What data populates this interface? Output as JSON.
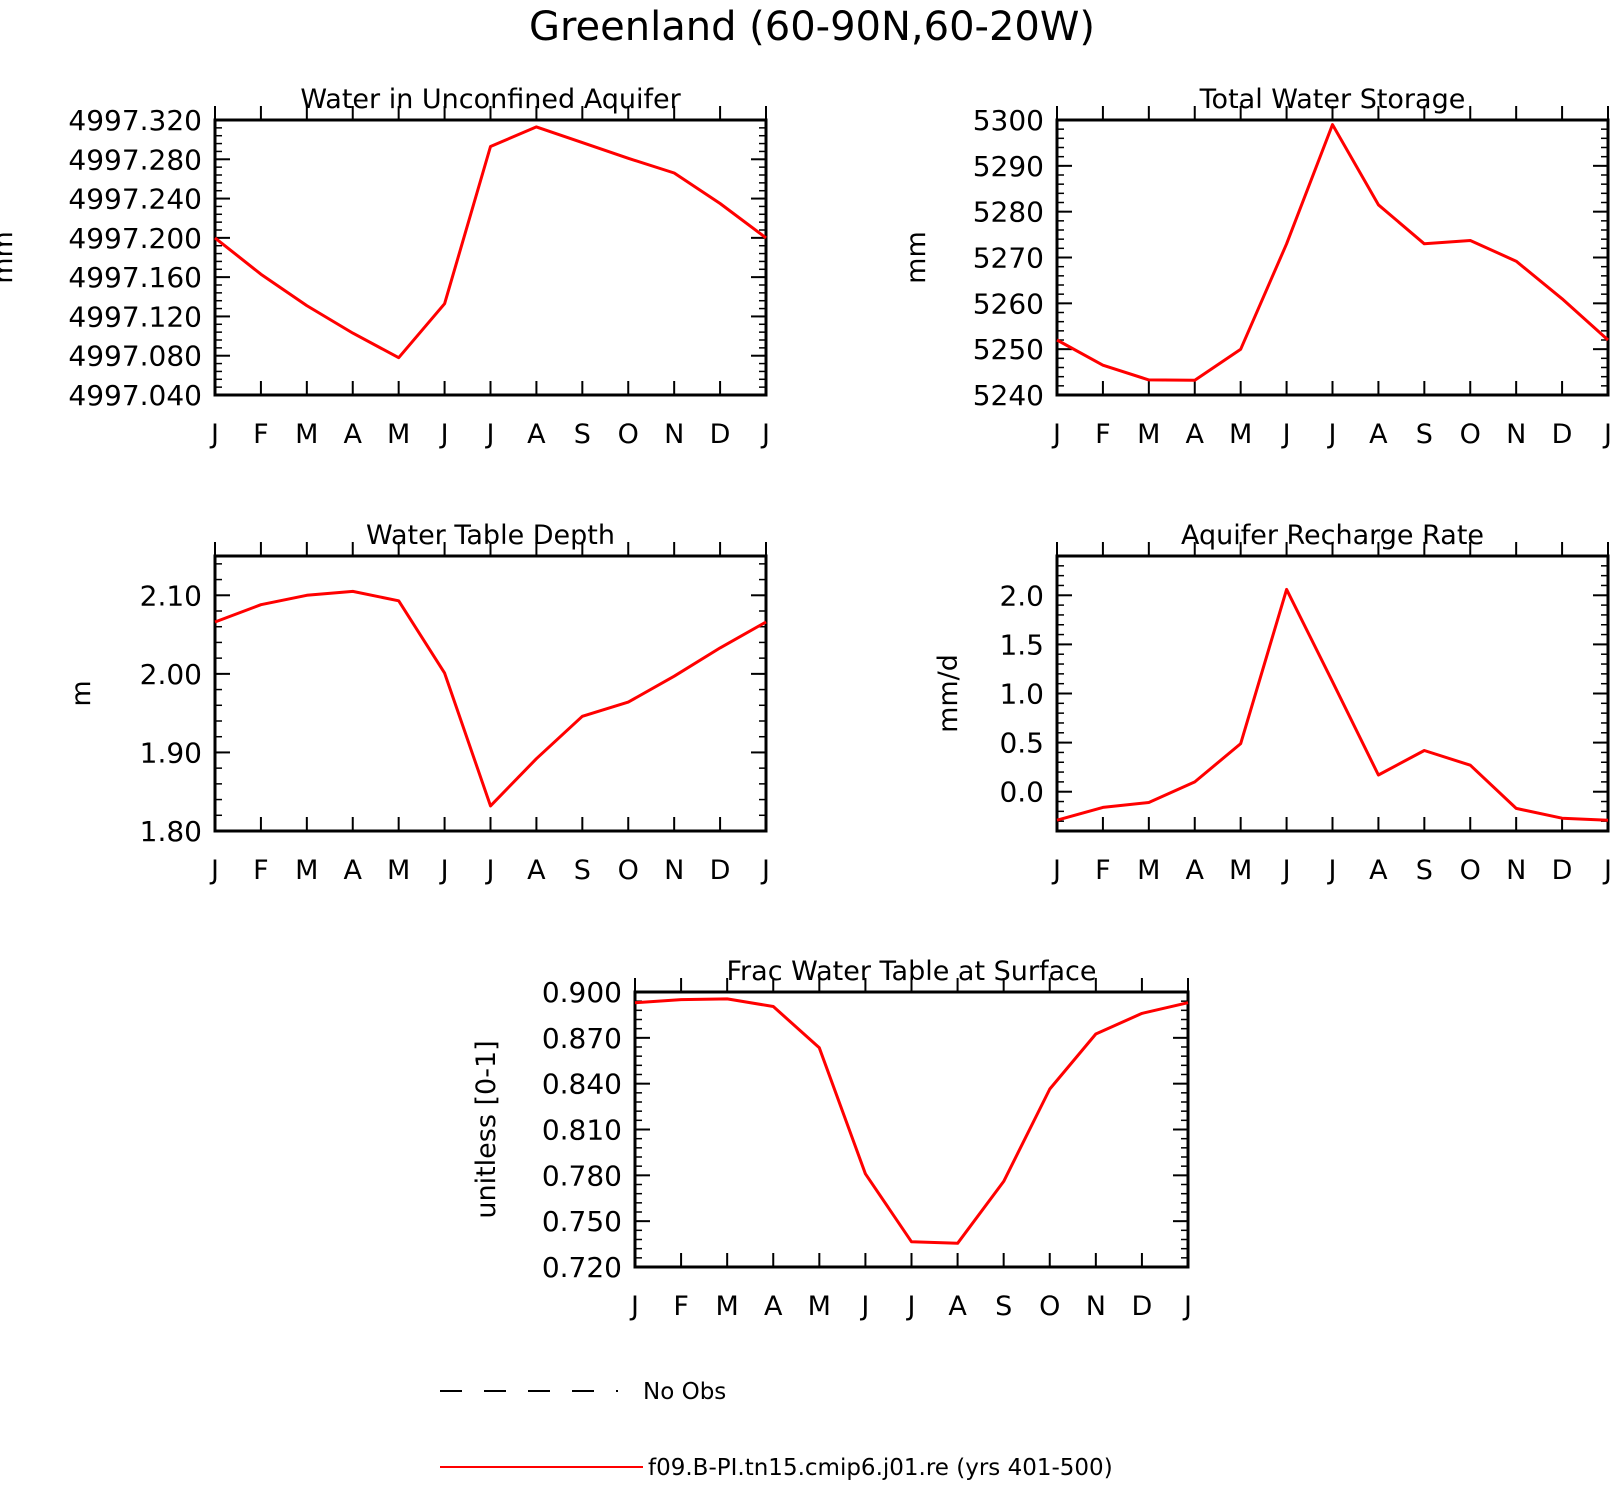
{
  "title": "Greenland (60-90N,60-20W)",
  "months": [
    "J",
    "F",
    "M",
    "A",
    "M",
    "J",
    "J",
    "A",
    "S",
    "O",
    "N",
    "D",
    "J"
  ],
  "line_color": "#ff0000",
  "legend": {
    "obs_label": "No Obs",
    "model_label": "f09.B-PI.tn15.cmip6.j01.re (yrs 401-500)"
  },
  "chart_data": [
    {
      "type": "line",
      "title": "Water in Unconfined Aquifer",
      "ylabel": "mm",
      "ylim": [
        4997.04,
        4997.32
      ],
      "yticks": [
        4997.04,
        4997.08,
        4997.12,
        4997.16,
        4997.2,
        4997.24,
        4997.28,
        4997.32
      ],
      "ytick_labels": [
        "4997.040",
        "4997.080",
        "4997.120",
        "4997.160",
        "4997.200",
        "4997.240",
        "4997.280",
        "4997.320"
      ],
      "y_minor_step": 0.008,
      "values": [
        4997.2,
        4997.163,
        4997.131,
        4997.103,
        4997.078,
        4997.133,
        4997.293,
        4997.313,
        4997.297,
        4997.281,
        4997.266,
        4997.235,
        4997.2
      ]
    },
    {
      "type": "line",
      "title": "Total Water Storage",
      "ylabel": "mm",
      "ylim": [
        5240,
        5300
      ],
      "yticks": [
        5240,
        5250,
        5260,
        5270,
        5280,
        5290,
        5300
      ],
      "ytick_labels": [
        "5240",
        "5250",
        "5260",
        "5270",
        "5280",
        "5290",
        "5300"
      ],
      "y_minor_step": 2,
      "values": [
        5252,
        5246.5,
        5243.3,
        5243.2,
        5250,
        5273,
        5299,
        5281.5,
        5273,
        5273.7,
        5269.2,
        5261,
        5252
      ]
    },
    {
      "type": "line",
      "title": "Water Table Depth",
      "ylabel": "m",
      "ylim": [
        1.8,
        2.15
      ],
      "yticks": [
        1.8,
        1.9,
        2.0,
        2.1
      ],
      "ytick_labels": [
        "1.80",
        "1.90",
        "2.00",
        "2.10"
      ],
      "y_minor_step": 0.02,
      "values": [
        2.066,
        2.088,
        2.1,
        2.105,
        2.093,
        2.001,
        1.832,
        1.892,
        1.946,
        1.964,
        1.997,
        2.033,
        2.066
      ]
    },
    {
      "type": "line",
      "title": "Aquifer Recharge Rate",
      "ylabel": "mm/d",
      "ylim": [
        -0.4,
        2.4
      ],
      "yticks": [
        0.0,
        0.5,
        1.0,
        1.5,
        2.0
      ],
      "ytick_labels": [
        "0.0",
        "0.5",
        "1.0",
        "1.5",
        "2.0"
      ],
      "y_minor_step": 0.1,
      "values": [
        -0.29,
        -0.16,
        -0.11,
        0.1,
        0.49,
        2.06,
        1.12,
        0.17,
        0.42,
        0.27,
        -0.17,
        -0.27,
        -0.29
      ]
    },
    {
      "type": "line",
      "title": "Frac Water Table at Surface",
      "ylabel": "unitless [0-1]",
      "ylim": [
        0.72,
        0.9
      ],
      "yticks": [
        0.72,
        0.75,
        0.78,
        0.81,
        0.84,
        0.87,
        0.9
      ],
      "ytick_labels": [
        "0.720",
        "0.750",
        "0.780",
        "0.810",
        "0.840",
        "0.870",
        "0.900"
      ],
      "y_minor_step": 0.006,
      "values": [
        0.893,
        0.895,
        0.8955,
        0.8905,
        0.8635,
        0.781,
        0.7365,
        0.7355,
        0.776,
        0.8365,
        0.8725,
        0.886,
        0.893
      ]
    }
  ]
}
